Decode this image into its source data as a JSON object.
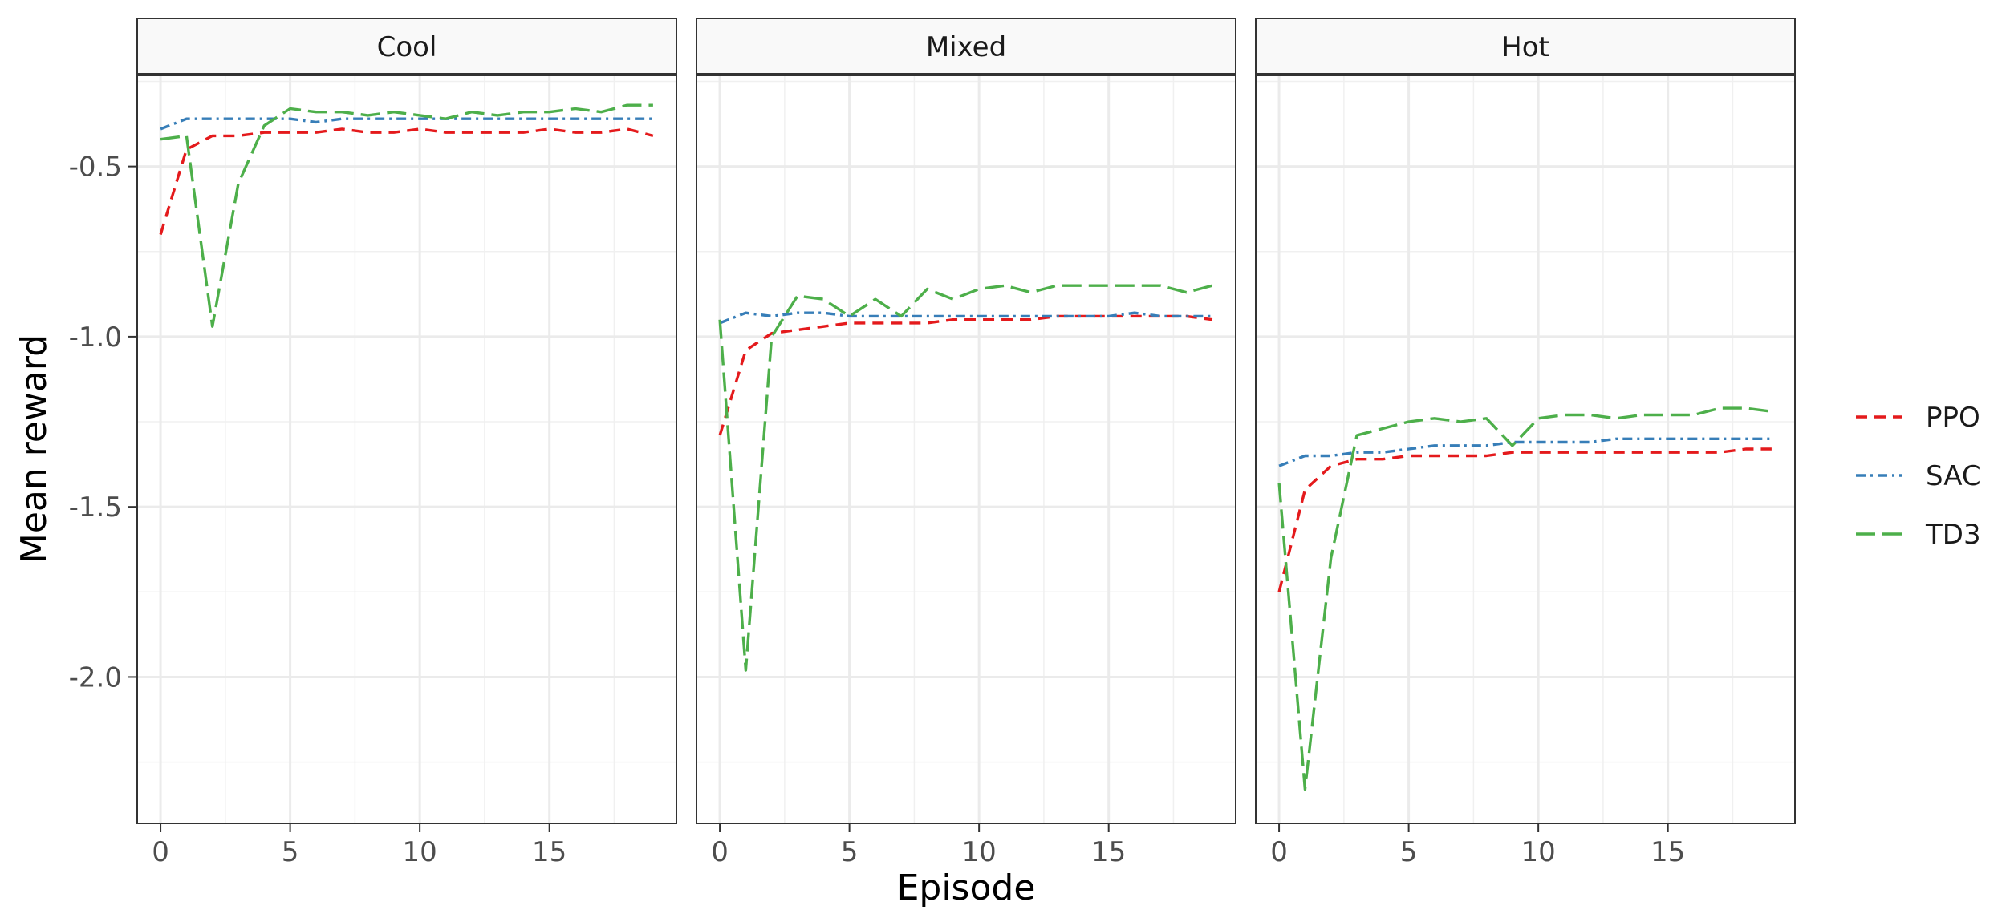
{
  "chart_data": {
    "type": "line",
    "facet_labels": [
      "Cool",
      "Mixed",
      "Hot"
    ],
    "xlabel": "Episode",
    "ylabel": "Mean reward",
    "xlim": [
      -0.9,
      19.9
    ],
    "ylim": [
      -2.43,
      -0.23
    ],
    "xticks": [
      0,
      5,
      10,
      15
    ],
    "xtick_labels": [
      "0",
      "5",
      "10",
      "15"
    ],
    "yticks": [
      -0.5,
      -1.0,
      -1.5,
      -2.0
    ],
    "ytick_labels": [
      "-0.5",
      "-1.0",
      "-1.5",
      "-2.0"
    ],
    "grid": true,
    "legend_position": "right",
    "legend": [
      {
        "name": "PPO",
        "color": "#e41a1c",
        "dash": "14,9"
      },
      {
        "name": "SAC",
        "color": "#377eb8",
        "dash": "12,6,3,6"
      },
      {
        "name": "TD3",
        "color": "#4daf4a",
        "dash": "24,9"
      }
    ],
    "x": [
      0,
      1,
      2,
      3,
      4,
      5,
      6,
      7,
      8,
      9,
      10,
      11,
      12,
      13,
      14,
      15,
      16,
      17,
      18,
      19
    ],
    "panels": [
      {
        "facet": "Cool",
        "series": [
          {
            "name": "PPO",
            "values": [
              -0.7,
              -0.45,
              -0.41,
              -0.41,
              -0.4,
              -0.4,
              -0.4,
              -0.39,
              -0.4,
              -0.4,
              -0.39,
              -0.4,
              -0.4,
              -0.4,
              -0.4,
              -0.39,
              -0.4,
              -0.4,
              -0.39,
              -0.41
            ]
          },
          {
            "name": "SAC",
            "values": [
              -0.39,
              -0.36,
              -0.36,
              -0.36,
              -0.36,
              -0.36,
              -0.37,
              -0.36,
              -0.36,
              -0.36,
              -0.36,
              -0.36,
              -0.36,
              -0.36,
              -0.36,
              -0.36,
              -0.36,
              -0.36,
              -0.36,
              -0.36
            ]
          },
          {
            "name": "TD3",
            "values": [
              -0.42,
              -0.41,
              -0.97,
              -0.55,
              -0.38,
              -0.33,
              -0.34,
              -0.34,
              -0.35,
              -0.34,
              -0.35,
              -0.36,
              -0.34,
              -0.35,
              -0.34,
              -0.34,
              -0.33,
              -0.34,
              -0.32,
              -0.32
            ]
          }
        ]
      },
      {
        "facet": "Mixed",
        "series": [
          {
            "name": "PPO",
            "values": [
              -1.29,
              -1.04,
              -0.99,
              -0.98,
              -0.97,
              -0.96,
              -0.96,
              -0.96,
              -0.96,
              -0.95,
              -0.95,
              -0.95,
              -0.95,
              -0.94,
              -0.94,
              -0.94,
              -0.94,
              -0.94,
              -0.94,
              -0.95
            ]
          },
          {
            "name": "SAC",
            "values": [
              -0.96,
              -0.93,
              -0.94,
              -0.93,
              -0.93,
              -0.94,
              -0.94,
              -0.94,
              -0.94,
              -0.94,
              -0.94,
              -0.94,
              -0.94,
              -0.94,
              -0.94,
              -0.94,
              -0.93,
              -0.94,
              -0.94,
              -0.94
            ]
          },
          {
            "name": "TD3",
            "values": [
              -0.95,
              -1.98,
              -1.0,
              -0.88,
              -0.89,
              -0.94,
              -0.89,
              -0.94,
              -0.86,
              -0.89,
              -0.86,
              -0.85,
              -0.87,
              -0.85,
              -0.85,
              -0.85,
              -0.85,
              -0.85,
              -0.87,
              -0.85
            ]
          }
        ]
      },
      {
        "facet": "Hot",
        "series": [
          {
            "name": "PPO",
            "values": [
              -1.75,
              -1.45,
              -1.38,
              -1.36,
              -1.36,
              -1.35,
              -1.35,
              -1.35,
              -1.35,
              -1.34,
              -1.34,
              -1.34,
              -1.34,
              -1.34,
              -1.34,
              -1.34,
              -1.34,
              -1.34,
              -1.33,
              -1.33
            ]
          },
          {
            "name": "SAC",
            "values": [
              -1.38,
              -1.35,
              -1.35,
              -1.34,
              -1.34,
              -1.33,
              -1.32,
              -1.32,
              -1.32,
              -1.31,
              -1.31,
              -1.31,
              -1.31,
              -1.3,
              -1.3,
              -1.3,
              -1.3,
              -1.3,
              -1.3,
              -1.3
            ]
          },
          {
            "name": "TD3",
            "values": [
              -1.43,
              -2.33,
              -1.65,
              -1.29,
              -1.27,
              -1.25,
              -1.24,
              -1.25,
              -1.24,
              -1.32,
              -1.24,
              -1.23,
              -1.23,
              -1.24,
              -1.23,
              -1.23,
              -1.23,
              -1.21,
              -1.21,
              -1.22
            ]
          }
        ]
      }
    ]
  }
}
